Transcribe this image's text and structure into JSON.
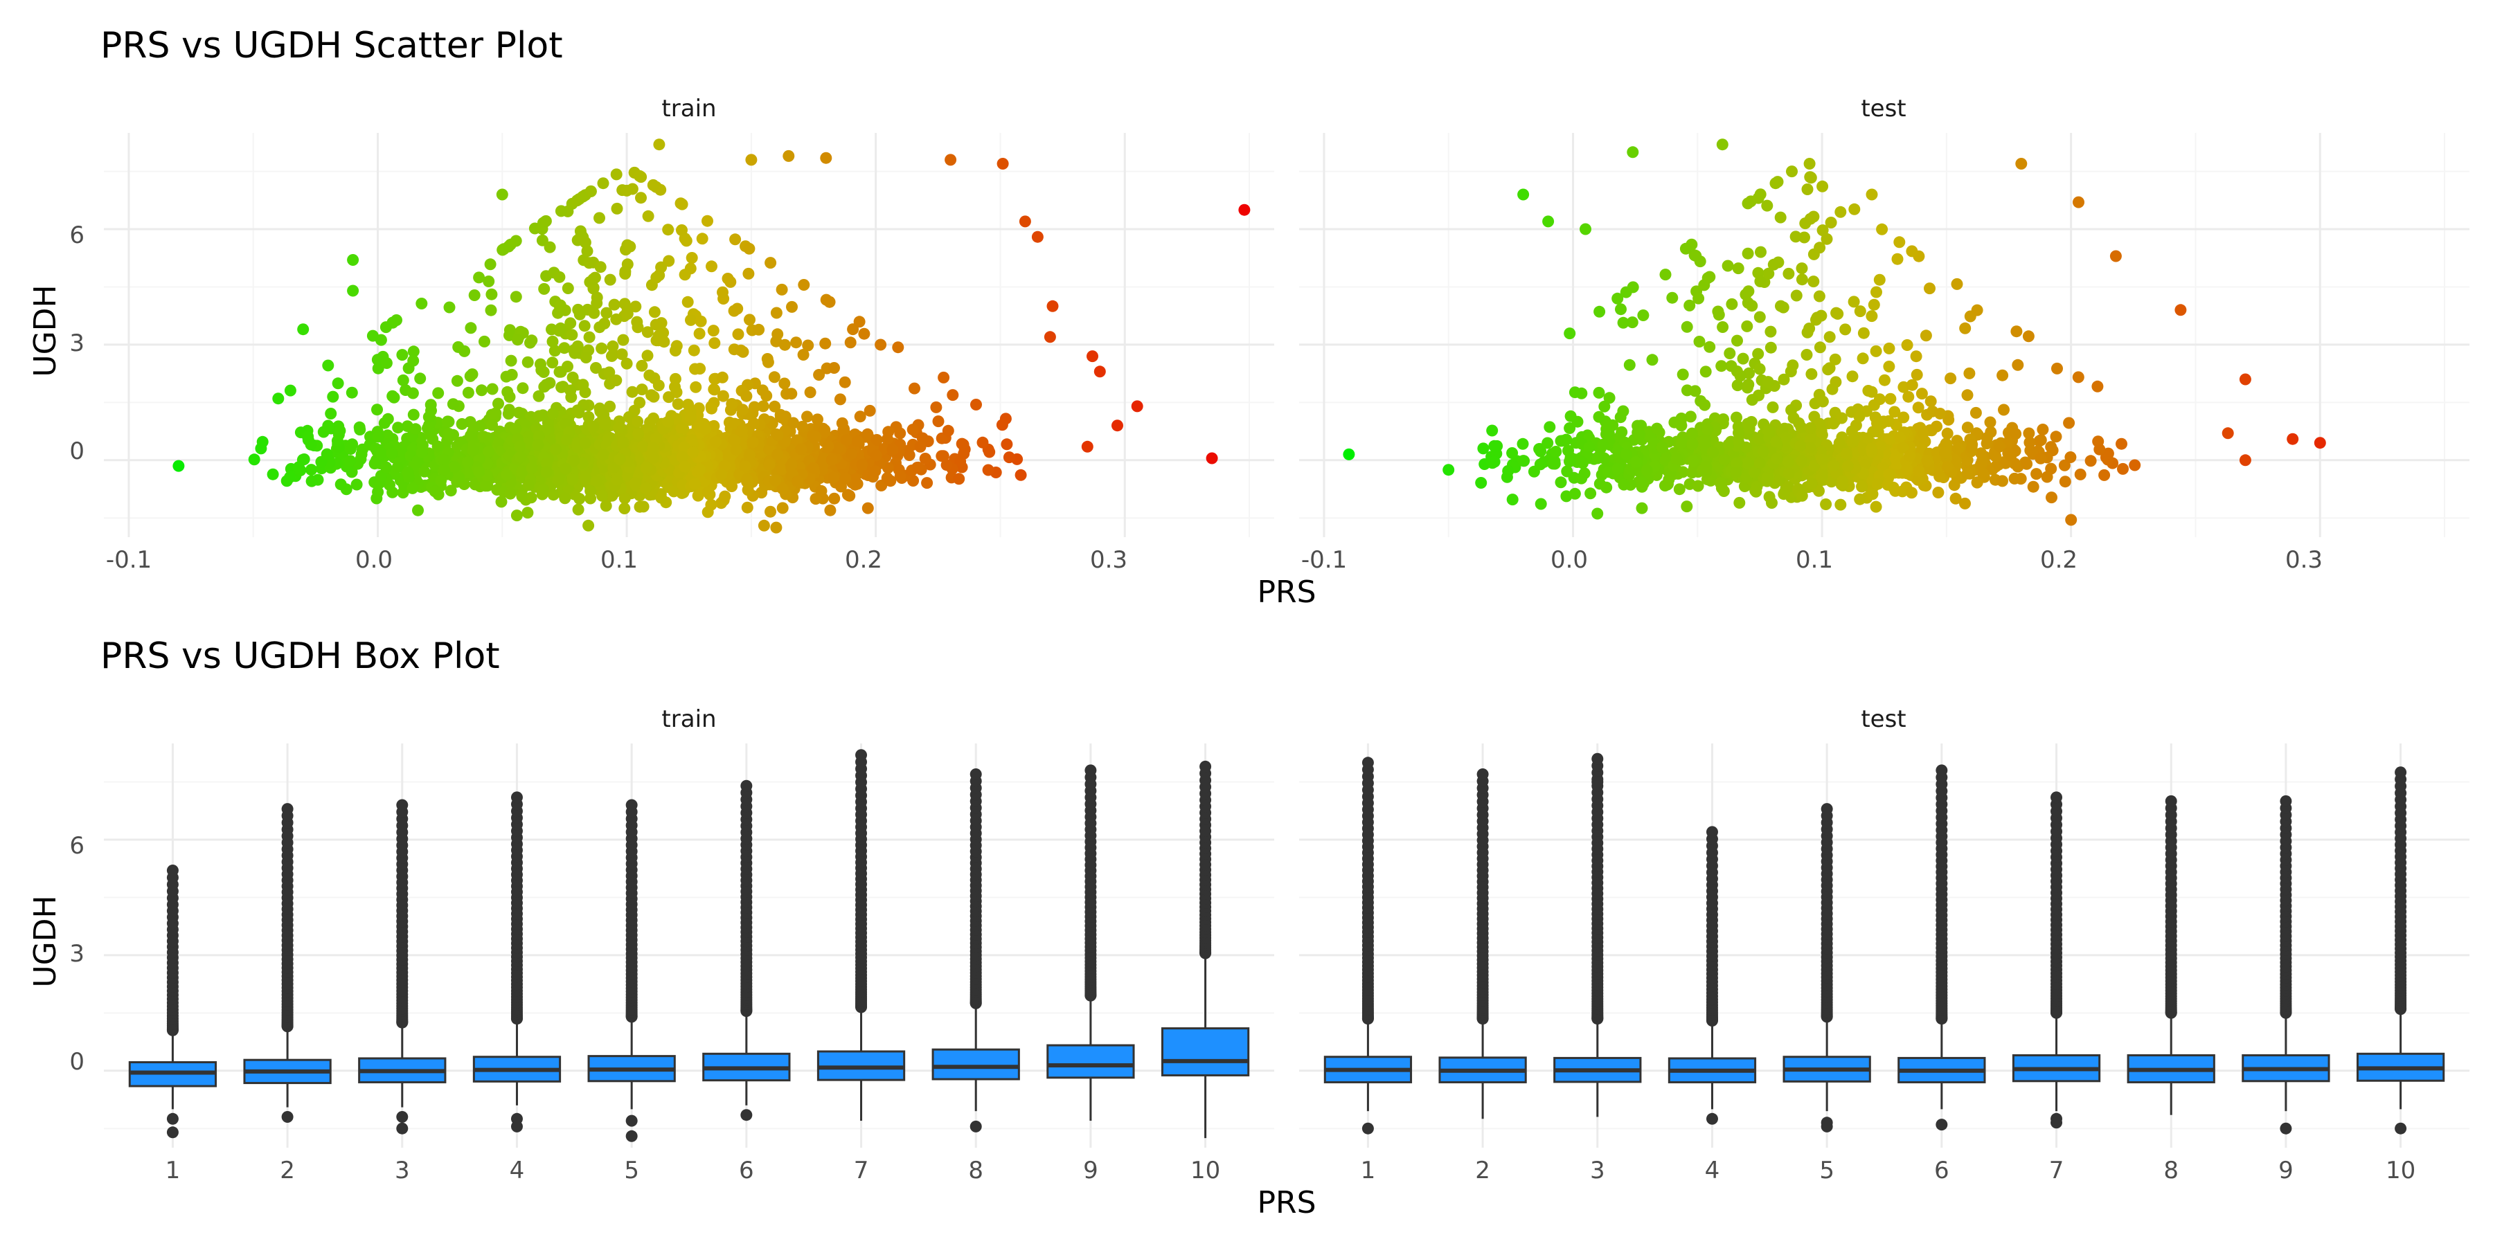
{
  "colors": {
    "background": "#ffffff",
    "grid_major": "#ebebeb",
    "grid_minor": "#f5f5f5",
    "box_fill": "#1e90ff",
    "box_line": "#333333",
    "outlier": "#333333",
    "gradient_low": "#00ee00",
    "gradient_mid": "#c8b400",
    "gradient_high": "#ee0000"
  },
  "scatter": {
    "title": "PRS vs UGDH Scatter Plot",
    "xlabel": "PRS",
    "ylabel": "UGDH",
    "facets": [
      "train",
      "test"
    ],
    "x_ticks": [
      "-0.1",
      "0.0",
      "0.1",
      "0.2",
      "0.3"
    ],
    "y_ticks": [
      "0",
      "3",
      "6"
    ]
  },
  "box": {
    "title": "PRS vs UGDH Box Plot",
    "xlabel": "PRS",
    "ylabel": "UGDH",
    "facets": [
      "train",
      "test"
    ],
    "x_ticks": [
      "1",
      "2",
      "3",
      "4",
      "5",
      "6",
      "7",
      "8",
      "9",
      "10"
    ],
    "y_ticks": [
      "0",
      "3",
      "6"
    ]
  },
  "chart_data": [
    {
      "type": "scatter",
      "title": "PRS vs UGDH Scatter Plot",
      "xlabel": "PRS",
      "ylabel": "UGDH",
      "xlim": [
        -0.11,
        0.36
      ],
      "ylim": [
        -2.0,
        8.5
      ],
      "grid": true,
      "color_encoding": "PRS (green low, red high)",
      "facets": [
        {
          "name": "train",
          "x_range_dense": [
            -0.05,
            0.27
          ],
          "center_x": 0.1,
          "sd_x": 0.055,
          "highlight_points": [
            {
              "x": -0.08,
              "y": -0.15
            },
            {
              "x": -0.03,
              "y": 3.4
            },
            {
              "x": -0.01,
              "y": 5.2
            },
            {
              "x": -0.01,
              "y": 4.4
            },
            {
              "x": 0.05,
              "y": 6.9
            },
            {
              "x": 0.1,
              "y": 7.0
            },
            {
              "x": 0.113,
              "y": 8.2
            },
            {
              "x": 0.15,
              "y": 7.8
            },
            {
              "x": 0.165,
              "y": 7.9
            },
            {
              "x": 0.18,
              "y": 7.85
            },
            {
              "x": 0.23,
              "y": 7.8
            },
            {
              "x": 0.251,
              "y": 7.7
            },
            {
              "x": 0.26,
              "y": 6.2
            },
            {
              "x": 0.265,
              "y": 5.8
            },
            {
              "x": 0.271,
              "y": 4.0
            },
            {
              "x": 0.27,
              "y": 3.2
            },
            {
              "x": 0.287,
              "y": 2.7
            },
            {
              "x": 0.29,
              "y": 2.3
            },
            {
              "x": 0.305,
              "y": 1.4
            },
            {
              "x": 0.297,
              "y": 0.9
            },
            {
              "x": 0.285,
              "y": 0.35
            },
            {
              "x": 0.335,
              "y": 0.05
            },
            {
              "x": 0.348,
              "y": 6.5
            },
            {
              "x": 0.16,
              "y": -1.75
            }
          ]
        },
        {
          "name": "test",
          "x_range_dense": [
            -0.04,
            0.23
          ],
          "center_x": 0.09,
          "sd_x": 0.05,
          "highlight_points": [
            {
              "x": -0.09,
              "y": 0.15
            },
            {
              "x": -0.05,
              "y": -0.25
            },
            {
              "x": -0.02,
              "y": 6.9
            },
            {
              "x": -0.01,
              "y": 6.2
            },
            {
              "x": 0.005,
              "y": 6.0
            },
            {
              "x": 0.024,
              "y": 8.0
            },
            {
              "x": 0.06,
              "y": 8.2
            },
            {
              "x": 0.095,
              "y": 7.7
            },
            {
              "x": 0.12,
              "y": 6.9
            },
            {
              "x": 0.18,
              "y": 7.7
            },
            {
              "x": 0.203,
              "y": 6.7
            },
            {
              "x": 0.218,
              "y": 5.3
            },
            {
              "x": 0.244,
              "y": 3.9
            },
            {
              "x": 0.27,
              "y": 2.1
            },
            {
              "x": 0.263,
              "y": 0.7
            },
            {
              "x": 0.289,
              "y": 0.55
            },
            {
              "x": 0.3,
              "y": 0.45
            },
            {
              "x": 0.27,
              "y": 0.0
            },
            {
              "x": 0.2,
              "y": -1.55
            }
          ]
        }
      ]
    },
    {
      "type": "box",
      "title": "PRS vs UGDH Box Plot",
      "xlabel": "PRS",
      "ylabel": "UGDH",
      "categories": [
        "1",
        "2",
        "3",
        "4",
        "5",
        "6",
        "7",
        "8",
        "9",
        "10"
      ],
      "ylim": [
        -2.0,
        8.5
      ],
      "grid": true,
      "series": [
        {
          "name": "train",
          "boxes": [
            {
              "min": -1.0,
              "q1": -0.4,
              "median": -0.05,
              "q3": 0.22,
              "max": 1.0,
              "outliers_high": [
                1.05,
                5.2
              ],
              "outliers_low": [
                -1.25,
                -1.6
              ]
            },
            {
              "min": -0.95,
              "q1": -0.32,
              "median": -0.02,
              "q3": 0.28,
              "max": 1.1,
              "outliers_high": [
                1.15,
                6.8
              ],
              "outliers_low": [
                -1.2
              ]
            },
            {
              "min": -0.95,
              "q1": -0.3,
              "median": -0.01,
              "q3": 0.32,
              "max": 1.2,
              "outliers_high": [
                1.25,
                6.9
              ],
              "outliers_low": [
                -1.2,
                -1.5
              ]
            },
            {
              "min": -0.9,
              "q1": -0.28,
              "median": 0.02,
              "q3": 0.36,
              "max": 1.3,
              "outliers_high": [
                1.35,
                7.1
              ],
              "outliers_low": [
                -1.25,
                -1.45
              ]
            },
            {
              "min": -1.0,
              "q1": -0.27,
              "median": 0.03,
              "q3": 0.38,
              "max": 1.35,
              "outliers_high": [
                1.4,
                6.9
              ],
              "outliers_low": [
                -1.3,
                -1.7
              ]
            },
            {
              "min": -0.9,
              "q1": -0.25,
              "median": 0.06,
              "q3": 0.44,
              "max": 1.5,
              "outliers_high": [
                1.55,
                7.4
              ],
              "outliers_low": [
                -1.15
              ]
            },
            {
              "min": -1.3,
              "q1": -0.24,
              "median": 0.08,
              "q3": 0.5,
              "max": 1.6,
              "outliers_high": [
                1.65,
                8.2
              ],
              "outliers_low": []
            },
            {
              "min": -1.05,
              "q1": -0.22,
              "median": 0.1,
              "q3": 0.55,
              "max": 1.7,
              "outliers_high": [
                1.75,
                7.7
              ],
              "outliers_low": [
                -1.45
              ]
            },
            {
              "min": -1.3,
              "q1": -0.18,
              "median": 0.14,
              "q3": 0.66,
              "max": 1.9,
              "outliers_high": [
                1.95,
                7.8
              ],
              "outliers_low": []
            },
            {
              "min": -1.75,
              "q1": -0.12,
              "median": 0.25,
              "q3": 1.1,
              "max": 3.0,
              "outliers_high": [
                3.05,
                7.9
              ],
              "outliers_low": []
            }
          ]
        },
        {
          "name": "test",
          "boxes": [
            {
              "min": -1.05,
              "q1": -0.3,
              "median": 0.02,
              "q3": 0.36,
              "max": 1.3,
              "outliers_high": [
                1.35,
                8.0
              ],
              "outliers_low": [
                -1.5
              ]
            },
            {
              "min": -1.25,
              "q1": -0.3,
              "median": 0.0,
              "q3": 0.34,
              "max": 1.3,
              "outliers_high": [
                1.35,
                7.7
              ],
              "outliers_low": []
            },
            {
              "min": -1.2,
              "q1": -0.29,
              "median": 0.01,
              "q3": 0.33,
              "max": 1.3,
              "outliers_high": [
                1.35,
                7.5,
                8.1
              ],
              "outliers_low": []
            },
            {
              "min": -1.0,
              "q1": -0.3,
              "median": 0.0,
              "q3": 0.32,
              "max": 1.25,
              "outliers_high": [
                1.3,
                6.2
              ],
              "outliers_low": [
                -1.25
              ]
            },
            {
              "min": -1.05,
              "q1": -0.28,
              "median": 0.03,
              "q3": 0.36,
              "max": 1.35,
              "outliers_high": [
                1.4,
                6.8
              ],
              "outliers_low": [
                -1.35,
                -1.45
              ]
            },
            {
              "min": -1.0,
              "q1": -0.3,
              "median": 0.0,
              "q3": 0.33,
              "max": 1.3,
              "outliers_high": [
                1.35,
                7.8
              ],
              "outliers_low": [
                -1.4
              ]
            },
            {
              "min": -1.05,
              "q1": -0.27,
              "median": 0.04,
              "q3": 0.4,
              "max": 1.45,
              "outliers_high": [
                1.5,
                7.1
              ],
              "outliers_low": [
                -1.25,
                -1.35
              ]
            },
            {
              "min": -1.15,
              "q1": -0.3,
              "median": 0.02,
              "q3": 0.4,
              "max": 1.45,
              "outliers_high": [
                1.5,
                7.0
              ],
              "outliers_low": []
            },
            {
              "min": -1.05,
              "q1": -0.27,
              "median": 0.04,
              "q3": 0.4,
              "max": 1.45,
              "outliers_high": [
                1.5,
                7.0
              ],
              "outliers_low": [
                -1.5
              ]
            },
            {
              "min": -1.0,
              "q1": -0.26,
              "median": 0.06,
              "q3": 0.44,
              "max": 1.55,
              "outliers_high": [
                1.6,
                7.75
              ],
              "outliers_low": [
                -1.5
              ]
            }
          ]
        }
      ]
    }
  ]
}
